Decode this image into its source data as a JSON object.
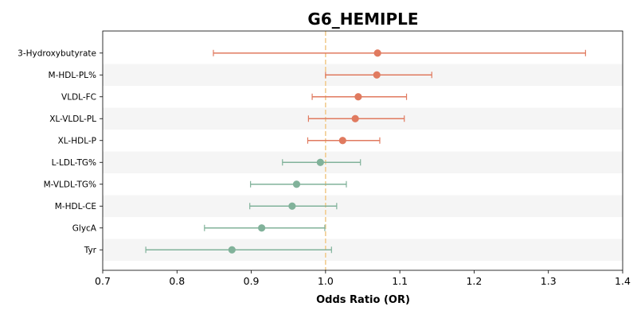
{
  "chart_data": {
    "type": "forest",
    "title": "G6_HEMIPLE",
    "xlabel": "Odds Ratio (OR)",
    "xlim": [
      0.7,
      1.4
    ],
    "xticks": [
      "0.7",
      "0.8",
      "0.9",
      "1.0",
      "1.1",
      "1.2",
      "1.3",
      "1.4"
    ],
    "reference_line": 1.0,
    "colors": {
      "above": "#e07a5f",
      "below": "#81b29a",
      "reference": "#f2cc8f",
      "band": "#f5f5f5"
    },
    "rows": [
      {
        "label": "3-Hydroxybutyrate",
        "or": 1.07,
        "lower": 0.849,
        "upper": 1.35
      },
      {
        "label": "M-HDL-PL%",
        "or": 1.069,
        "lower": 1.0,
        "upper": 1.143
      },
      {
        "label": "VLDL-FC",
        "or": 1.044,
        "lower": 0.982,
        "upper": 1.109
      },
      {
        "label": "XL-VLDL-PL",
        "or": 1.04,
        "lower": 0.977,
        "upper": 1.106
      },
      {
        "label": "XL-HDL-P",
        "or": 1.023,
        "lower": 0.976,
        "upper": 1.073
      },
      {
        "label": "L-LDL-TG%",
        "or": 0.993,
        "lower": 0.942,
        "upper": 1.047
      },
      {
        "label": "M-VLDL-TG%",
        "or": 0.961,
        "lower": 0.899,
        "upper": 1.028
      },
      {
        "label": "M-HDL-CE",
        "or": 0.955,
        "lower": 0.898,
        "upper": 1.015
      },
      {
        "label": "GlycA",
        "or": 0.914,
        "lower": 0.837,
        "upper": 0.999
      },
      {
        "label": "Tyr",
        "or": 0.874,
        "lower": 0.758,
        "upper": 1.008
      }
    ]
  }
}
